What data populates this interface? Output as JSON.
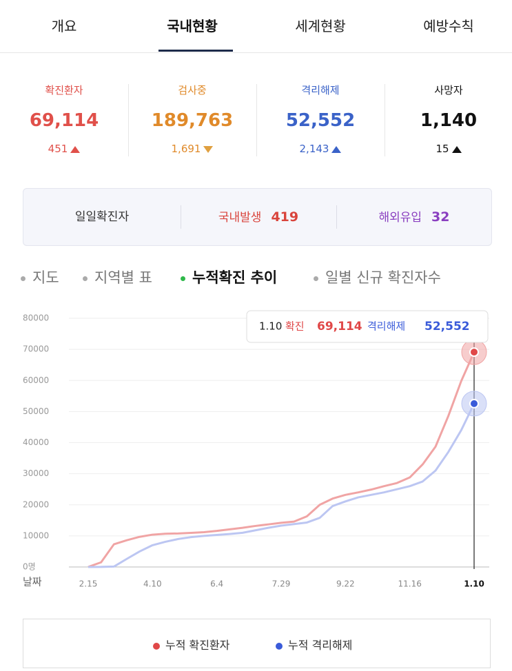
{
  "tabs": [
    {
      "label": "개요",
      "active": false
    },
    {
      "label": "국내현황",
      "active": true
    },
    {
      "label": "세계현황",
      "active": false
    },
    {
      "label": "예방수칙",
      "active": false
    }
  ],
  "stats": [
    {
      "label": "확진환자",
      "value": "69,114",
      "change": "451",
      "direction": "up",
      "color": "#e0504a"
    },
    {
      "label": "검사중",
      "value": "189,763",
      "change": "1,691",
      "direction": "down",
      "color": "#e08a2a"
    },
    {
      "label": "격리해제",
      "value": "52,552",
      "change": "2,143",
      "direction": "up",
      "color": "#3a62c8"
    },
    {
      "label": "사망자",
      "value": "1,140",
      "change": "15",
      "direction": "up",
      "color": "#111111"
    }
  ],
  "daily": {
    "title": "일일확진자",
    "items": [
      {
        "label": "국내발생",
        "value": "419",
        "color": "#d9443c"
      },
      {
        "label": "해외유입",
        "value": "32",
        "color": "#8a3fc0"
      }
    ]
  },
  "subtabs": [
    {
      "label": "지도",
      "active": false
    },
    {
      "label": "지역별 표",
      "active": false
    },
    {
      "label": "누적확진 추이",
      "active": true
    },
    {
      "label": "일별 신규 확진자수",
      "active": false
    }
  ],
  "chart_data": {
    "type": "line",
    "x_label": "날짜",
    "x": [
      "2.15",
      null,
      null,
      null,
      null,
      "4.10",
      null,
      null,
      null,
      null,
      "6.4",
      null,
      null,
      null,
      null,
      "7.29",
      null,
      null,
      null,
      null,
      "9.22",
      null,
      null,
      null,
      null,
      "11.16",
      null,
      null,
      null,
      null,
      "1.10"
    ],
    "series": [
      {
        "name": "누적 확진환자",
        "color": "#f0a4a4",
        "dot_color": "#e04848",
        "values": [
          28,
          1500,
          7300,
          8600,
          9700,
          10400,
          10700,
          10780,
          10960,
          11200,
          11600,
          12100,
          12600,
          13200,
          13700,
          14200,
          14600,
          16300,
          20000,
          22000,
          23200,
          24000,
          24900,
          26000,
          27000,
          28800,
          33000,
          38700,
          48600,
          59800,
          69114
        ]
      },
      {
        "name": "누적 격리해제",
        "color": "#bcc6f2",
        "dot_color": "#3a5bd9",
        "values": [
          10,
          22,
          130,
          2600,
          5000,
          7000,
          8100,
          9000,
          9600,
          10000,
          10300,
          10600,
          11000,
          11800,
          12600,
          13300,
          13800,
          14300,
          15800,
          19600,
          21100,
          22400,
          23200,
          24000,
          25000,
          26000,
          27500,
          31000,
          37000,
          44000,
          52552
        ]
      }
    ],
    "ylim": [
      0,
      80000
    ],
    "yticks": [
      {
        "value": 0,
        "label": "0명"
      },
      10000,
      20000,
      30000,
      40000,
      50000,
      60000,
      70000,
      80000
    ],
    "grid": true,
    "tooltip": {
      "date": "1.10",
      "items": [
        {
          "name": "확진",
          "label": "69,114"
        },
        {
          "name": "격리해제",
          "label": "52,552"
        }
      ]
    }
  }
}
